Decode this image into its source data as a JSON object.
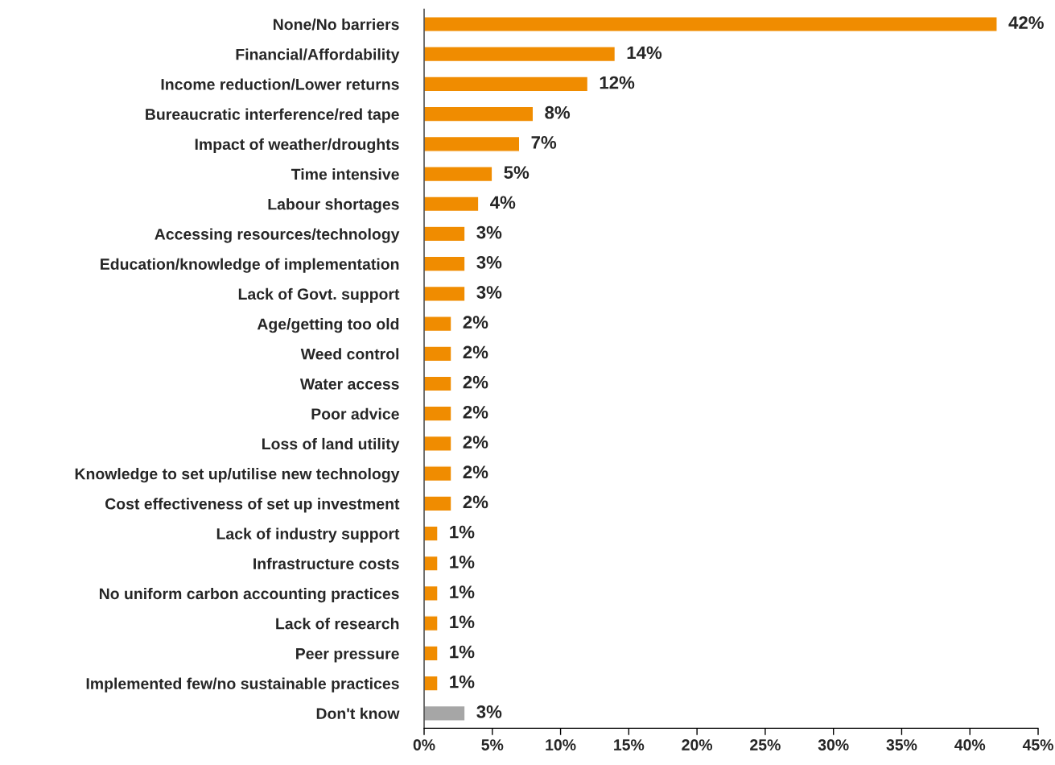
{
  "chart_data": {
    "type": "bar",
    "orientation": "horizontal",
    "categories": [
      "None/No barriers",
      "Financial/Affordability",
      "Income reduction/Lower returns",
      "Bureaucratic interference/red tape",
      "Impact of weather/droughts",
      "Time intensive",
      "Labour shortages",
      "Accessing resources/technology",
      "Education/knowledge of implementation",
      "Lack of Govt. support",
      "Age/getting too old",
      "Weed control",
      "Water access",
      "Poor advice",
      "Loss of land utility",
      "Knowledge to set up/utilise new technology",
      "Cost effectiveness of set up investment",
      "Lack of industry support",
      "Infrastructure costs",
      "No uniform carbon accounting practices",
      "Lack of research",
      "Peer pressure",
      "Implemented few/no sustainable practices",
      "Don't know"
    ],
    "values": [
      42,
      14,
      12,
      8,
      7,
      5,
      4,
      3,
      3,
      3,
      2,
      2,
      2,
      2,
      2,
      2,
      2,
      1,
      1,
      1,
      1,
      1,
      1,
      3
    ],
    "colors": [
      "#f08c00",
      "#f08c00",
      "#f08c00",
      "#f08c00",
      "#f08c00",
      "#f08c00",
      "#f08c00",
      "#f08c00",
      "#f08c00",
      "#f08c00",
      "#f08c00",
      "#f08c00",
      "#f08c00",
      "#f08c00",
      "#f08c00",
      "#f08c00",
      "#f08c00",
      "#f08c00",
      "#f08c00",
      "#f08c00",
      "#f08c00",
      "#f08c00",
      "#f08c00",
      "#a6a6a6"
    ],
    "value_labels": [
      "42%",
      "14%",
      "12%",
      "8%",
      "7%",
      "5%",
      "4%",
      "3%",
      "3%",
      "3%",
      "2%",
      "2%",
      "2%",
      "2%",
      "2%",
      "2%",
      "2%",
      "1%",
      "1%",
      "1%",
      "1%",
      "1%",
      "1%",
      "3%"
    ],
    "xlim": [
      0,
      45
    ],
    "xticks": [
      {
        "value": 0,
        "label": "0%"
      },
      {
        "value": 5,
        "label": "5%"
      },
      {
        "value": 10,
        "label": "10%"
      },
      {
        "value": 15,
        "label": "15%"
      },
      {
        "value": 20,
        "label": "20%"
      },
      {
        "value": 25,
        "label": "25%"
      },
      {
        "value": 30,
        "label": "30%"
      },
      {
        "value": 35,
        "label": "35%"
      },
      {
        "value": 40,
        "label": "40%"
      },
      {
        "value": 45,
        "label": "45%"
      }
    ],
    "grid": false,
    "legend": false
  }
}
